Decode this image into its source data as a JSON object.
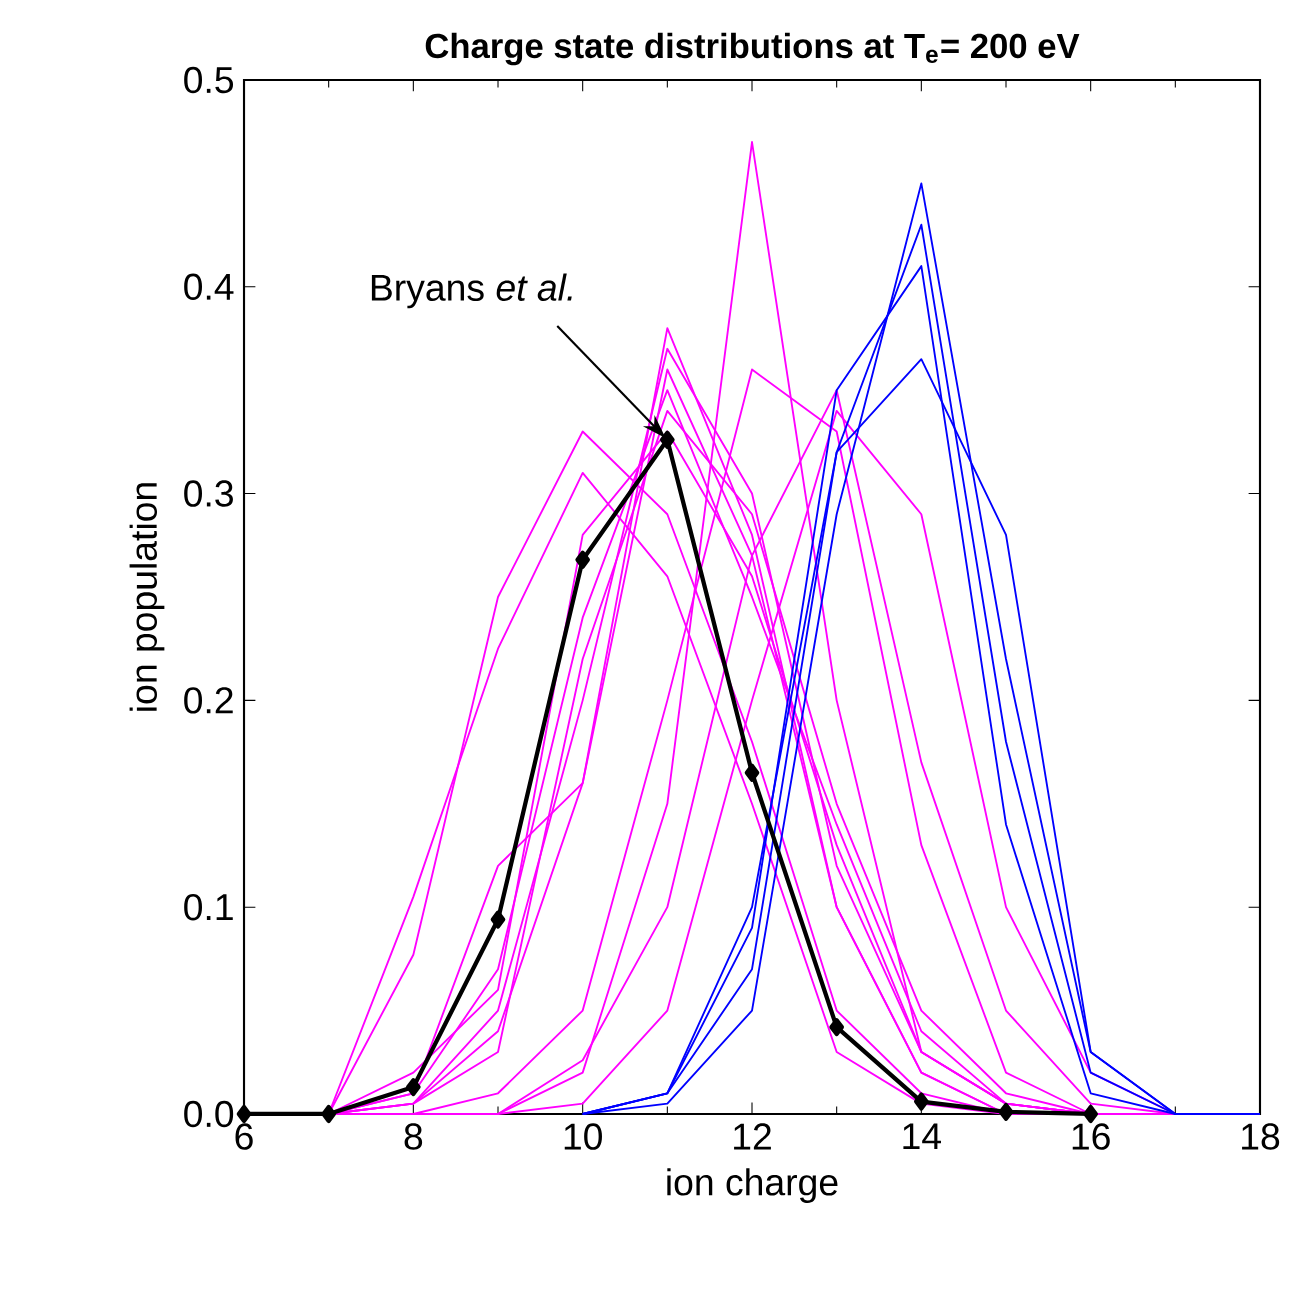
{
  "chart_data": {
    "type": "line",
    "title": "Charge state distributions at T$_{e}$= 200 eV",
    "xlabel": "ion charge",
    "ylabel": "ion population",
    "x": [
      6,
      7,
      8,
      9,
      10,
      11,
      12,
      13,
      14,
      15,
      16,
      17,
      18
    ],
    "xlim": [
      6,
      18
    ],
    "xticks": [
      6,
      8,
      10,
      12,
      14,
      16,
      18
    ],
    "ylim": [
      0,
      0.5
    ],
    "yticks": [
      {
        "value": 0,
        "label": "0.0"
      },
      {
        "value": 0.1,
        "label": "0.1"
      },
      {
        "value": 0.2,
        "label": "0.2"
      },
      {
        "value": 0.3,
        "label": "0.3"
      },
      {
        "value": 0.4,
        "label": "0.4"
      },
      {
        "value": 0.5,
        "label": "0.5"
      }
    ],
    "grid": false,
    "line_style": "solid",
    "series": [
      {
        "color": "#ff00ff",
        "values": [
          0,
          0,
          0.077,
          0.25,
          0.33,
          0.29,
          0.18,
          0.05,
          0.01,
          0,
          0,
          0,
          0
        ]
      },
      {
        "color": "#ff00ff",
        "values": [
          0,
          0,
          0.105,
          0.225,
          0.31,
          0.26,
          0.15,
          0.03,
          0.005,
          0,
          0,
          0,
          0
        ]
      },
      {
        "color": "#ff00ff",
        "values": [
          0,
          0,
          0,
          0,
          0.02,
          0.15,
          0.47,
          0.2,
          0.03,
          0.005,
          0,
          0,
          0
        ]
      },
      {
        "color": "#ff00ff",
        "values": [
          0,
          0,
          0,
          0.01,
          0.05,
          0.2,
          0.36,
          0.33,
          0.13,
          0.02,
          0,
          0,
          0
        ]
      },
      {
        "color": "#ff00ff",
        "values": [
          0,
          0,
          0,
          0,
          0.026,
          0.1,
          0.27,
          0.35,
          0.17,
          0.05,
          0.005,
          0,
          0
        ]
      },
      {
        "color": "#ff00ff",
        "values": [
          0,
          0,
          0,
          0,
          0.005,
          0.05,
          0.2,
          0.34,
          0.29,
          0.1,
          0.02,
          0,
          0
        ]
      },
      {
        "color": "#ff00ff",
        "values": [
          0,
          0,
          0.005,
          0.04,
          0.16,
          0.38,
          0.28,
          0.1,
          0.02,
          0,
          0,
          0,
          0
        ]
      },
      {
        "color": "#ff00ff",
        "values": [
          0,
          0,
          0.005,
          0.05,
          0.2,
          0.37,
          0.3,
          0.12,
          0.03,
          0.005,
          0,
          0,
          0
        ]
      },
      {
        "color": "#ff00ff",
        "values": [
          0,
          0,
          0.01,
          0.12,
          0.16,
          0.36,
          0.27,
          0.1,
          0.02,
          0,
          0,
          0,
          0
        ]
      },
      {
        "color": "#ff00ff",
        "values": [
          0,
          0,
          0.01,
          0.07,
          0.24,
          0.35,
          0.25,
          0.14,
          0.04,
          0.005,
          0,
          0,
          0
        ]
      },
      {
        "color": "#ff00ff",
        "values": [
          0,
          0,
          0.005,
          0.03,
          0.22,
          0.34,
          0.29,
          0.15,
          0.05,
          0.01,
          0,
          0,
          0
        ]
      },
      {
        "color": "#ff00ff",
        "values": [
          0,
          0,
          0.02,
          0.06,
          0.28,
          0.33,
          0.26,
          0.13,
          0.03,
          0.005,
          0,
          0,
          0
        ]
      },
      {
        "color": "#0000ff",
        "values": [
          null,
          null,
          null,
          null,
          0,
          0.005,
          0.05,
          0.29,
          0.45,
          0.22,
          0.03,
          0,
          0
        ]
      },
      {
        "color": "#0000ff",
        "values": [
          null,
          null,
          null,
          null,
          0,
          0.01,
          0.07,
          0.32,
          0.43,
          0.18,
          0.02,
          0,
          0
        ]
      },
      {
        "color": "#0000ff",
        "values": [
          null,
          null,
          null,
          null,
          0,
          0.01,
          0.09,
          0.35,
          0.41,
          0.14,
          0.01,
          0,
          0
        ]
      },
      {
        "color": "#0000ff",
        "values": [
          null,
          null,
          null,
          null,
          0,
          0.01,
          0.1,
          0.32,
          0.365,
          0.28,
          0.03,
          0,
          0
        ]
      },
      {
        "color": "#000000",
        "marker": "diamond",
        "values": [
          0,
          0,
          0.013,
          0.094,
          0.268,
          0.326,
          0.165,
          0.042,
          0.006,
          0.001,
          0,
          null,
          null
        ]
      }
    ],
    "annotations": [
      {
        "text": "Bryans *et al.*",
        "x": 11,
        "y": 0.326
      }
    ]
  }
}
